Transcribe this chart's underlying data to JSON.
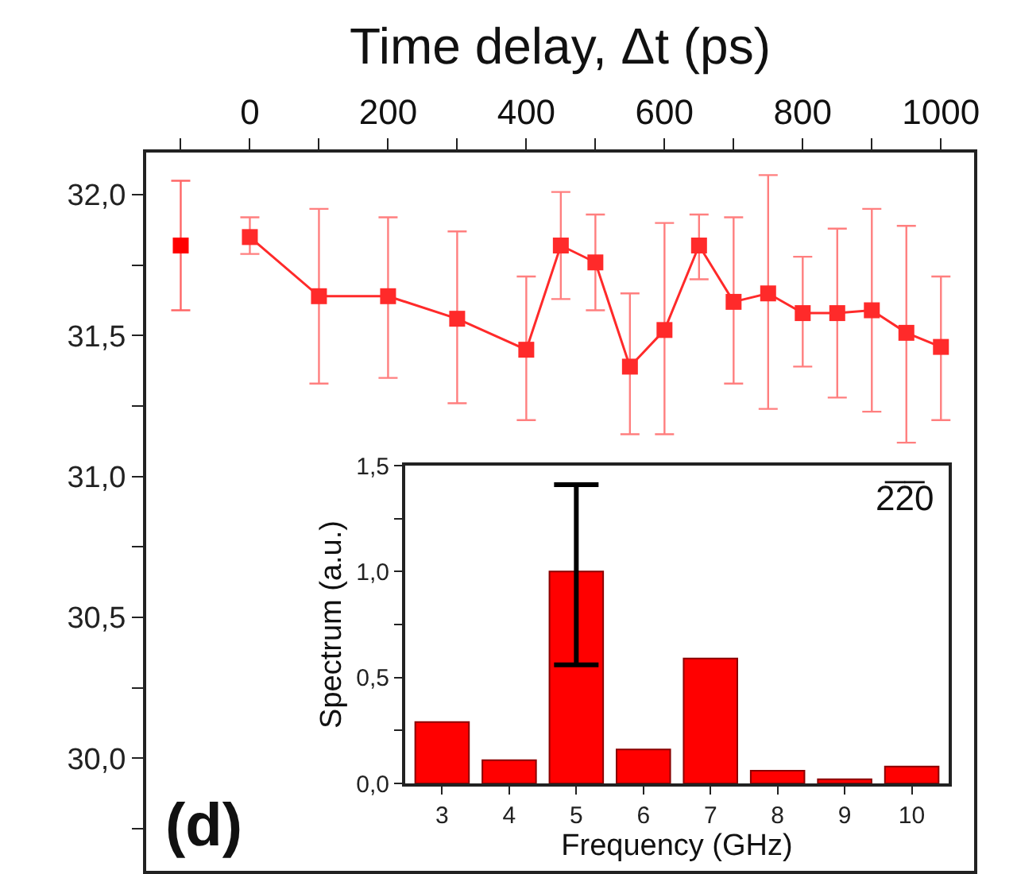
{
  "chart_data": [
    {
      "type": "line",
      "xlabel": "Time delay, Δt (ps)",
      "xlim": [
        -150,
        1048
      ],
      "xticks": [
        {
          "value": -100,
          "label": null
        },
        0,
        {
          "value": 100,
          "label": null
        },
        200,
        {
          "value": 300,
          "label": null
        },
        400,
        {
          "value": 500,
          "label": null
        },
        600,
        {
          "value": 700,
          "label": null
        },
        800,
        {
          "value": 900,
          "label": null
        },
        1000
      ],
      "ylim": [
        29.6,
        32.15
      ],
      "yticks": [
        {
          "value": 29.75,
          "label": null
        },
        {
          "value": 30,
          "label": "30,0"
        },
        {
          "value": 30.25,
          "label": null
        },
        {
          "value": 30.5,
          "label": "30,5"
        },
        {
          "value": 30.75,
          "label": null
        },
        {
          "value": 31,
          "label": "31,0"
        },
        {
          "value": 31.25,
          "label": null
        },
        {
          "value": 31.5,
          "label": "31,5"
        },
        {
          "value": 31.75,
          "label": null
        },
        {
          "value": 32,
          "label": "32,0"
        }
      ],
      "marker": "square",
      "grid": false,
      "annotations": [
        "(d)"
      ],
      "series": [
        {
          "type": "scatter",
          "color": "#ff0000",
          "x": [
            -100
          ],
          "values": [
            31.82
          ],
          "errors": [
            [
              31.59,
              32.05
            ]
          ]
        },
        {
          "type": "line",
          "color": "#ff2a2a",
          "x": [
            0,
            100,
            200,
            300,
            400,
            450,
            500,
            550,
            600,
            650,
            700,
            750,
            800,
            850,
            900,
            950,
            1000
          ],
          "values": [
            31.85,
            31.64,
            31.64,
            31.56,
            31.45,
            31.82,
            31.76,
            31.39,
            31.52,
            31.82,
            31.62,
            31.65,
            31.58,
            31.58,
            31.59,
            31.51,
            31.46
          ],
          "errors": [
            [
              31.79,
              31.92
            ],
            [
              31.33,
              31.95
            ],
            [
              31.35,
              31.92
            ],
            [
              31.26,
              31.87
            ],
            [
              31.2,
              31.71
            ],
            [
              31.63,
              32.01
            ],
            [
              31.59,
              31.93
            ],
            [
              31.15,
              31.65
            ],
            [
              31.15,
              31.9
            ],
            [
              31.7,
              31.93
            ],
            [
              31.33,
              31.92
            ],
            [
              31.24,
              32.07
            ],
            [
              31.39,
              31.78
            ],
            [
              31.28,
              31.88
            ],
            [
              31.23,
              31.95
            ],
            [
              31.12,
              31.89
            ],
            [
              31.2,
              31.71
            ]
          ]
        }
      ]
    },
    {
      "type": "bar",
      "xlabel": "Frequency (GHz)",
      "ylabel": "Spectrum (a.u.)",
      "categories": [
        "3",
        "4",
        "5",
        "6",
        "7",
        "8",
        "9",
        "10"
      ],
      "values": [
        0.29,
        0.11,
        1.0,
        0.16,
        0.59,
        0.06,
        0.02,
        0.08
      ],
      "errors": [
        null,
        null,
        [
          0.56,
          1.41
        ],
        null,
        null,
        null,
        null,
        null
      ],
      "color": "#ff0000",
      "ylim": [
        0,
        1.5
      ],
      "yticks": [
        {
          "value": 0,
          "label": "0,0"
        },
        {
          "value": 0.25,
          "label": null
        },
        {
          "value": 0.5,
          "label": "0,5"
        },
        {
          "value": 0.75,
          "label": null
        },
        {
          "value": 1,
          "label": "1,0"
        },
        {
          "value": 1.25,
          "label": null
        },
        {
          "value": 1.5,
          "label": "1,5"
        }
      ],
      "grid": false,
      "annotations": [
        "2̅2̅0"
      ]
    }
  ]
}
